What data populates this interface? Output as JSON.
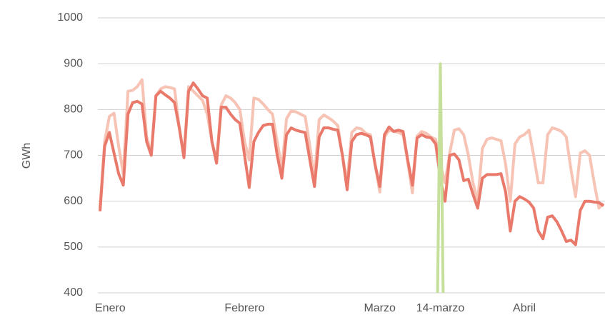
{
  "chart_data": {
    "type": "line",
    "y_label": "GWh",
    "x": [
      0,
      1,
      2,
      3,
      4,
      5,
      6,
      7,
      8,
      9,
      10,
      11,
      12,
      13,
      14,
      15,
      16,
      17,
      18,
      19,
      20,
      21,
      22,
      23,
      24,
      25,
      26,
      27,
      28,
      29,
      30,
      31,
      32,
      33,
      34,
      35,
      36,
      37,
      38,
      39,
      40,
      41,
      42,
      43,
      44,
      45,
      46,
      47,
      48,
      49,
      50,
      51,
      52,
      53,
      54,
      55,
      56,
      57,
      58,
      59,
      60,
      61,
      62,
      63,
      64,
      65,
      66,
      67,
      68,
      69,
      70,
      71,
      72,
      73,
      74,
      75,
      76,
      77,
      78,
      79,
      80,
      81,
      82,
      83,
      84,
      85,
      86,
      87,
      88,
      89,
      90,
      91,
      92,
      93,
      94,
      95,
      96,
      97,
      98,
      99,
      100,
      101,
      102,
      103,
      104,
      105,
      106,
      107,
      108
    ],
    "series": [
      {
        "color": "#f6c3b4",
        "values": [
          585,
          730,
          785,
          792,
          720,
          660,
          840,
          842,
          850,
          865,
          740,
          705,
          830,
          845,
          850,
          848,
          845,
          760,
          700,
          850,
          840,
          830,
          820,
          790,
          730,
          690,
          810,
          830,
          825,
          815,
          800,
          730,
          690,
          825,
          822,
          812,
          800,
          790,
          730,
          670,
          780,
          797,
          795,
          790,
          785,
          720,
          650,
          778,
          788,
          782,
          775,
          765,
          700,
          640,
          750,
          760,
          758,
          748,
          745,
          680,
          620,
          740,
          755,
          752,
          750,
          745,
          685,
          618,
          742,
          752,
          748,
          740,
          735,
          680,
          640,
          705,
          755,
          758,
          745,
          700,
          640,
          600,
          715,
          735,
          738,
          735,
          732,
          680,
          600,
          725,
          740,
          745,
          755,
          700,
          640,
          640,
          745,
          760,
          757,
          752,
          740,
          670,
          610,
          705,
          710,
          700,
          640,
          585,
          595
        ]
      },
      {
        "color": "#e97a6b",
        "values": [
          578,
          720,
          750,
          705,
          660,
          635,
          790,
          815,
          818,
          812,
          730,
          700,
          830,
          840,
          832,
          825,
          815,
          760,
          695,
          840,
          858,
          845,
          830,
          825,
          730,
          683,
          805,
          805,
          790,
          778,
          770,
          700,
          630,
          730,
          750,
          765,
          768,
          768,
          700,
          650,
          745,
          760,
          755,
          752,
          750,
          690,
          632,
          740,
          760,
          760,
          757,
          755,
          700,
          625,
          730,
          745,
          748,
          745,
          740,
          680,
          632,
          745,
          762,
          752,
          755,
          752,
          690,
          635,
          738,
          745,
          740,
          738,
          725,
          650,
          600,
          700,
          703,
          690,
          645,
          648,
          615,
          585,
          650,
          658,
          658,
          658,
          660,
          620,
          535,
          600,
          610,
          605,
          598,
          585,
          535,
          518,
          565,
          568,
          555,
          535,
          512,
          515,
          505,
          580,
          600,
          600,
          598,
          597,
          590
        ]
      },
      {
        "color": "#c6df9b",
        "x": [
          72.4,
          73,
          73.6
        ],
        "values": [
          400,
          900,
          400
        ]
      }
    ],
    "xlim": [
      0,
      108
    ],
    "xticks": [
      {
        "value": 0,
        "label": "Enero"
      },
      {
        "value": 31,
        "label": "Febrero"
      },
      {
        "value": 60,
        "label": "Marzo"
      },
      {
        "value": 73,
        "label": "14-marzo"
      },
      {
        "value": 91,
        "label": "Abril"
      }
    ],
    "ylim": [
      400,
      1000
    ],
    "yticks": [
      400,
      500,
      600,
      700,
      800,
      900,
      1000
    ],
    "grid": true
  }
}
